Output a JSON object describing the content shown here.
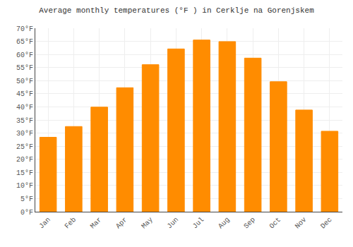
{
  "chart_data": {
    "type": "bar",
    "title": "Average monthly temperatures (°F ) in Cerklje na Gorenjskem",
    "categories": [
      "Jan",
      "Feb",
      "Mar",
      "Apr",
      "May",
      "Jun",
      "Jul",
      "Aug",
      "Sep",
      "Oct",
      "Nov",
      "Dec"
    ],
    "values": [
      28.4,
      32.5,
      39.9,
      47.3,
      56.1,
      62.1,
      65.5,
      64.9,
      58.6,
      49.6,
      38.8,
      30.7
    ],
    "color": "#FF8C00",
    "ylim": [
      0,
      70
    ],
    "yticks": [
      {
        "value": 0,
        "label": "0°F"
      },
      {
        "value": 5,
        "label": "5°F"
      },
      {
        "value": 10,
        "label": "10°F"
      },
      {
        "value": 15,
        "label": "15°F"
      },
      {
        "value": 20,
        "label": "20°F"
      },
      {
        "value": 25,
        "label": "25°F"
      },
      {
        "value": 30,
        "label": "30°F"
      },
      {
        "value": 35,
        "label": "35°F"
      },
      {
        "value": 40,
        "label": "40°F"
      },
      {
        "value": 45,
        "label": "45°F"
      },
      {
        "value": 50,
        "label": "50°F"
      },
      {
        "value": 55,
        "label": "55°F"
      },
      {
        "value": 60,
        "label": "60°F"
      },
      {
        "value": 65,
        "label": "65°F"
      },
      {
        "value": 70,
        "label": "70°F"
      }
    ],
    "grid": true
  }
}
